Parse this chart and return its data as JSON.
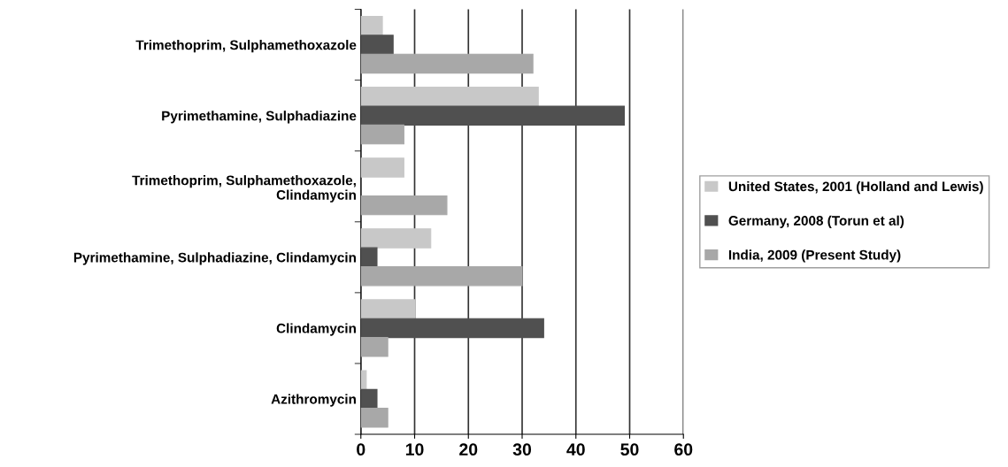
{
  "chart_data": {
    "type": "bar",
    "orientation": "horizontal",
    "categories": [
      "Trimethoprim, Sulphamethoxazole",
      "Pyrimethamine, Sulphadiazine",
      "Trimethoprim, Sulphamethoxazole,\nClindamycin",
      "Pyrimethamine, Sulphadiazine, Clindamycin",
      "Clindamycin",
      "Azithromycin"
    ],
    "series": [
      {
        "name": "United States, 2001 (Holland and Lewis)",
        "color": "#c8c8c8",
        "values": [
          4,
          33,
          8,
          13,
          10,
          1
        ]
      },
      {
        "name": "Germany, 2008 (Torun et al)",
        "color": "#505050",
        "values": [
          6,
          49,
          null,
          3,
          34,
          3
        ]
      },
      {
        "name": "India, 2009 (Present Study)",
        "color": "#a8a8a8",
        "values": [
          32,
          8,
          16,
          30,
          5,
          5
        ]
      }
    ],
    "xlim": [
      0,
      60
    ],
    "xticks": [
      0,
      10,
      20,
      30,
      40,
      50,
      60
    ],
    "grid": "x",
    "legend": "right"
  }
}
